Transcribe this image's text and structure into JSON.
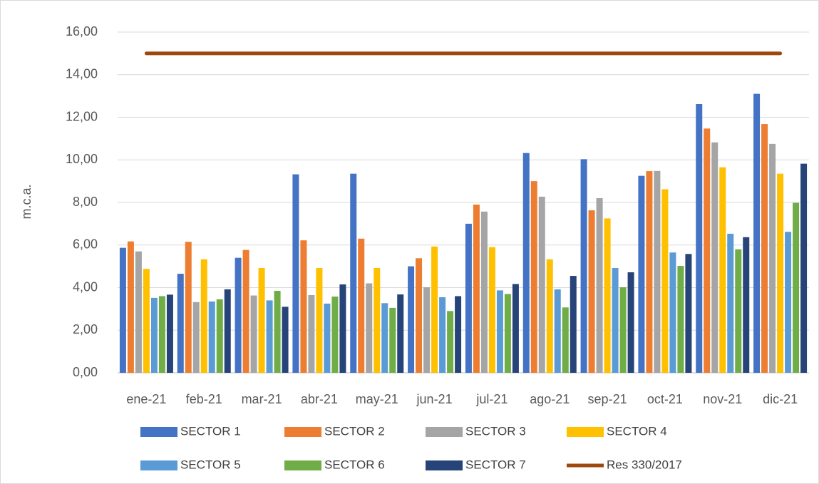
{
  "chart_data": {
    "type": "bar",
    "ylabel": "m.c.a.",
    "categories": [
      "ene-21",
      "feb-21",
      "mar-21",
      "abr-21",
      "may-21",
      "jun-21",
      "jul-21",
      "ago-21",
      "sep-21",
      "oct-21",
      "nov-21",
      "dic-21"
    ],
    "series": [
      {
        "name": "SECTOR 1",
        "color": "#4472c4",
        "values": [
          5.87,
          4.65,
          5.4,
          9.32,
          9.35,
          5.0,
          7.0,
          10.32,
          10.03,
          9.25,
          12.62,
          13.1
        ]
      },
      {
        "name": "SECTOR 2",
        "color": "#ed7d31",
        "values": [
          6.17,
          6.15,
          5.77,
          6.22,
          6.3,
          5.38,
          7.9,
          9.0,
          7.63,
          9.47,
          11.47,
          11.68
        ]
      },
      {
        "name": "SECTOR 3",
        "color": "#a5a5a5",
        "values": [
          5.7,
          3.32,
          3.63,
          3.65,
          4.2,
          4.02,
          7.57,
          8.27,
          8.2,
          9.48,
          10.82,
          10.75
        ]
      },
      {
        "name": "SECTOR 4",
        "color": "#ffc000",
        "values": [
          4.88,
          5.33,
          4.92,
          4.92,
          4.92,
          5.93,
          5.9,
          5.33,
          7.25,
          8.62,
          9.65,
          9.35
        ]
      },
      {
        "name": "SECTOR 5",
        "color": "#5b9bd5",
        "values": [
          3.52,
          3.35,
          3.4,
          3.25,
          3.27,
          3.55,
          3.87,
          3.92,
          4.92,
          5.65,
          6.53,
          6.62
        ]
      },
      {
        "name": "SECTOR 6",
        "color": "#70ad47",
        "values": [
          3.6,
          3.45,
          3.85,
          3.58,
          3.05,
          2.9,
          3.7,
          3.07,
          4.02,
          5.02,
          5.8,
          7.98
        ]
      },
      {
        "name": "SECTOR 7",
        "color": "#264478",
        "values": [
          3.67,
          3.92,
          3.1,
          4.15,
          3.68,
          3.6,
          4.17,
          4.55,
          4.72,
          5.58,
          6.37,
          9.82
        ]
      },
      {
        "name": "Res 330/2017",
        "color": "#9e480e",
        "type": "line",
        "values": [
          15,
          15,
          15,
          15,
          15,
          15,
          15,
          15,
          15,
          15,
          15,
          15
        ]
      }
    ],
    "ylim": [
      0,
      16
    ],
    "yticks": [
      {
        "value": 0,
        "label": "0,00"
      },
      {
        "value": 2,
        "label": "2,00"
      },
      {
        "value": 4,
        "label": "4,00"
      },
      {
        "value": 6,
        "label": "6,00"
      },
      {
        "value": 8,
        "label": "8,00"
      },
      {
        "value": 10,
        "label": "10,00"
      },
      {
        "value": 12,
        "label": "12,00"
      },
      {
        "value": 14,
        "label": "14,00"
      },
      {
        "value": 16,
        "label": "16,00"
      }
    ],
    "grid": true,
    "legend": "bottom"
  }
}
